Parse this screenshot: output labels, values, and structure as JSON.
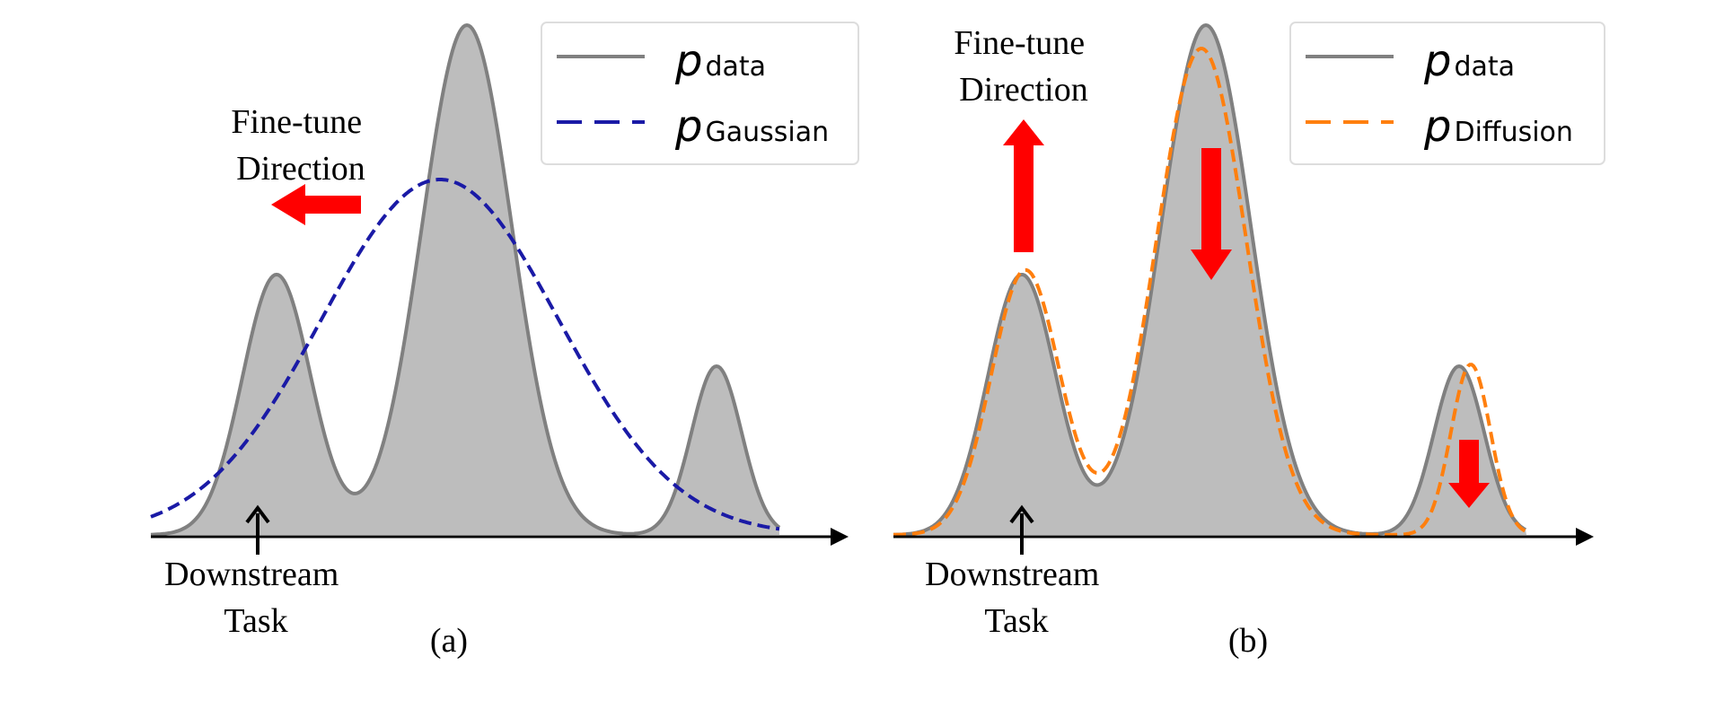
{
  "colors": {
    "data_fill": "#bdbdbd",
    "data_line": "#808080",
    "gaussian": "#1a1aa6",
    "diffusion": "#ff7f0e",
    "arrow_red": "#ff0000",
    "axis": "#000000"
  },
  "panels": [
    {
      "caption": "(a)",
      "annotation": [
        "Fine-tune",
        "Direction"
      ],
      "downstream": [
        "Downstream",
        "Task"
      ],
      "legend": [
        {
          "symbol": "p",
          "subscript": "data",
          "style": "solid",
          "color": "#808080"
        },
        {
          "symbol": "p",
          "subscript": "Gaussian",
          "style": "dashed",
          "color": "#1a1aa6"
        }
      ],
      "finetune_arrows": [
        {
          "icon": "arrow-left-icon"
        }
      ]
    },
    {
      "caption": "(b)",
      "annotation": [
        "Fine-tune",
        "Direction"
      ],
      "downstream": [
        "Downstream",
        "Task"
      ],
      "legend": [
        {
          "symbol": "p",
          "subscript": "data",
          "style": "solid",
          "color": "#808080"
        },
        {
          "symbol": "p",
          "subscript": "Diffusion",
          "style": "dashed",
          "color": "#ff7f0e"
        }
      ],
      "finetune_arrows": [
        {
          "icon": "arrow-up-icon"
        },
        {
          "icon": "arrow-down-icon"
        },
        {
          "icon": "arrow-down-icon"
        }
      ]
    }
  ]
}
